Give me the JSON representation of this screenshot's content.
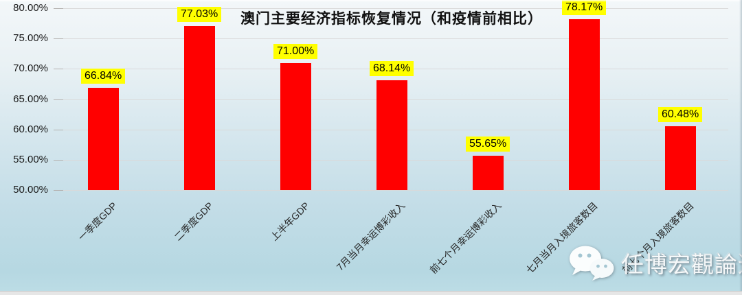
{
  "watermark": {
    "text": "任博宏觀論道",
    "icon": "wechat-icon"
  },
  "chart_data": {
    "type": "bar",
    "title": "澳门主要经济指标恢复情况（和疫情前相比）",
    "categories": [
      "一季度GDP",
      "二季度GDP",
      "上半年GDP",
      "7月当月幸运博彩收入",
      "前七个月幸运博彩收入",
      "七月当月入境旅客数目",
      "前七个月入境旅客数目"
    ],
    "values": [
      66.84,
      77.03,
      71.0,
      68.14,
      55.65,
      78.17,
      60.48
    ],
    "value_labels": [
      "66.84%",
      "77.03%",
      "71.00%",
      "68.14%",
      "55.65%",
      "78.17%",
      "60.48%"
    ],
    "xlabel": "",
    "ylabel": "",
    "ylim": [
      50,
      80
    ],
    "yticks": [
      50,
      55,
      60,
      65,
      70,
      75,
      80
    ],
    "ytick_labels": [
      "50.00%",
      "55.00%",
      "60.00%",
      "65.00%",
      "70.00%",
      "75.00%",
      "80.00%"
    ],
    "grid": true,
    "legend": false,
    "bar_color": "#ff0000",
    "value_label_bg": "#ffff00",
    "value_label_color": "#000000",
    "title_color": "#111111"
  }
}
